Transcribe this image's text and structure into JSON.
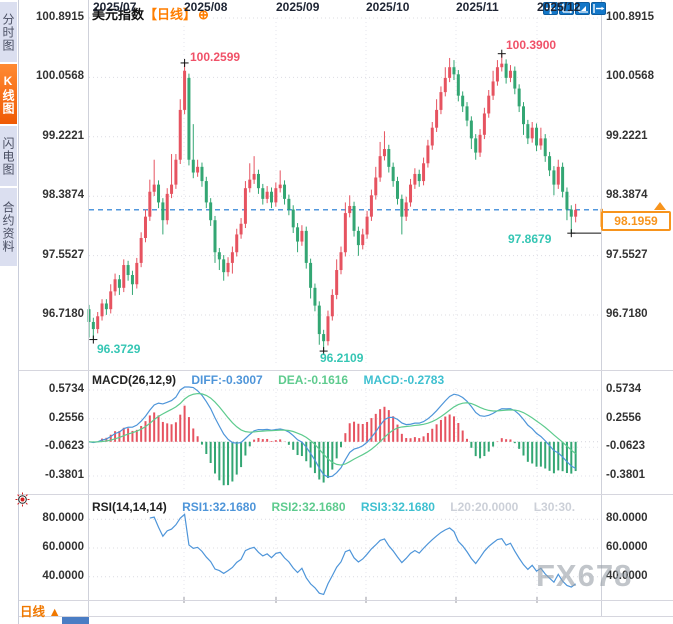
{
  "sidebar": {
    "tabs": [
      {
        "label": "分时图",
        "active": false
      },
      {
        "label": "K线图",
        "active": true
      },
      {
        "label": "闪电图",
        "active": false
      },
      {
        "label": "合约资料",
        "active": false
      }
    ]
  },
  "header": {
    "title": "美元指数",
    "period_tag": "【日线】",
    "add_icon": "⊕"
  },
  "main_chart": {
    "y_axis_labels": [
      "100.8915",
      "100.0568",
      "99.2221",
      "98.3874",
      "97.5527",
      "96.7180"
    ],
    "annotations": {
      "high_jul": "100.2599",
      "high_nov": "100.3900",
      "low_jul": "96.3729",
      "low_sep": "96.2109",
      "low_dec": "97.8679",
      "last_price": "98.1959"
    }
  },
  "macd_panel": {
    "title": "MACD(26,12,9)",
    "diff": "DIFF:-0.3007",
    "dea": "DEA:-0.1616",
    "macd": "MACD:-0.2783",
    "y_axis_labels": [
      "0.5734",
      "0.2556",
      "-0.0623",
      "-0.3801"
    ]
  },
  "rsi_panel": {
    "title": "RSI(14,14,14)",
    "rsi1": "RSI1:32.1680",
    "rsi2": "RSI2:32.1680",
    "rsi3": "RSI3:32.1680",
    "l20": "L20:20.0000",
    "l30": "L30:30.",
    "y_axis_labels": [
      "80.0000",
      "60.0000",
      "40.0000"
    ]
  },
  "x_axis": {
    "labels": [
      "2025/07",
      "2025/08",
      "2025/09",
      "2025/10",
      "2025/11",
      "2025/12"
    ]
  },
  "footer": {
    "period": "日线",
    "arrow": "▲"
  },
  "watermark": "FX678",
  "colors": {
    "up": "#e65360",
    "down": "#33a673",
    "accent": "#f7941d",
    "dashed": "#1876d2",
    "diff": "#4e95d9",
    "dea": "#5ecb8e",
    "macd": "#3fc0d0",
    "rsi": "#4e95d9",
    "high_label": "#f05168",
    "low_label": "#35c6b4"
  },
  "chart_data": [
    {
      "type": "candlestick",
      "title": "美元指数 日线",
      "x_ticks": [
        "2025/07",
        "2025/08",
        "2025/09",
        "2025/10",
        "2025/11",
        "2025/12"
      ],
      "y_ticks": [
        100.8915,
        100.0568,
        99.2221,
        98.3874,
        97.5527,
        96.718
      ],
      "ylim": [
        96.15,
        100.95
      ],
      "last_price": 98.1959,
      "markers": [
        {
          "idx": 1,
          "price": 96.3729
        },
        {
          "idx": 22,
          "price": 100.2599
        },
        {
          "idx": 54,
          "price": 96.2109
        },
        {
          "idx": 95,
          "price": 100.39
        },
        {
          "idx": 111,
          "price": 97.8679
        }
      ],
      "ohlc": [
        [
          96.8,
          96.86,
          96.4,
          96.62
        ],
        [
          96.62,
          96.68,
          96.3729,
          96.52
        ],
        [
          96.52,
          96.76,
          96.46,
          96.7
        ],
        [
          96.7,
          96.94,
          96.64,
          96.88
        ],
        [
          96.88,
          96.94,
          96.72,
          96.8
        ],
        [
          96.8,
          97.15,
          96.74,
          97.05
        ],
        [
          97.05,
          97.3,
          96.99,
          97.22
        ],
        [
          97.22,
          97.28,
          97.0,
          97.1
        ],
        [
          97.1,
          97.5,
          97.04,
          97.42
        ],
        [
          97.42,
          97.48,
          97.2,
          97.28
        ],
        [
          97.28,
          97.34,
          97.0,
          97.15
        ],
        [
          97.15,
          97.52,
          97.09,
          97.45
        ],
        [
          97.45,
          97.88,
          97.39,
          97.8
        ],
        [
          97.8,
          98.2,
          97.74,
          98.1
        ],
        [
          98.1,
          98.62,
          98.04,
          98.45
        ],
        [
          98.45,
          98.9,
          98.39,
          98.55
        ],
        [
          98.55,
          98.61,
          98.22,
          98.3
        ],
        [
          98.3,
          98.36,
          97.85,
          98.05
        ],
        [
          98.05,
          98.5,
          97.99,
          98.42
        ],
        [
          98.42,
          98.98,
          98.36,
          98.55
        ],
        [
          98.55,
          98.98,
          98.49,
          98.9
        ],
        [
          98.9,
          99.75,
          98.84,
          99.6
        ],
        [
          99.6,
          100.2599,
          99.54,
          100.15
        ],
        [
          100.05,
          100.11,
          98.82,
          98.9
        ],
        [
          98.9,
          99.4,
          98.64,
          98.72
        ],
        [
          98.72,
          98.9,
          98.66,
          98.8
        ],
        [
          98.8,
          98.86,
          98.52,
          98.6
        ],
        [
          98.6,
          98.66,
          98.22,
          98.3
        ],
        [
          98.3,
          98.36,
          97.97,
          98.05
        ],
        [
          98.05,
          98.11,
          97.45,
          97.6
        ],
        [
          97.6,
          97.66,
          97.35,
          97.5
        ],
        [
          97.5,
          97.56,
          97.2,
          97.32
        ],
        [
          97.32,
          97.53,
          97.26,
          97.45
        ],
        [
          97.45,
          97.68,
          97.3,
          97.6
        ],
        [
          97.6,
          97.93,
          97.54,
          97.85
        ],
        [
          97.85,
          98.08,
          97.79,
          98.0
        ],
        [
          98.0,
          98.6,
          97.94,
          98.5
        ],
        [
          98.5,
          98.85,
          98.44,
          98.62
        ],
        [
          98.62,
          98.95,
          98.56,
          98.7
        ],
        [
          98.7,
          98.76,
          98.42,
          98.5
        ],
        [
          98.5,
          98.56,
          98.27,
          98.35
        ],
        [
          98.35,
          98.53,
          98.29,
          98.45
        ],
        [
          98.45,
          98.51,
          98.22,
          98.3
        ],
        [
          98.3,
          98.58,
          98.24,
          98.5
        ],
        [
          98.5,
          98.75,
          98.44,
          98.55
        ],
        [
          98.55,
          98.61,
          98.27,
          98.35
        ],
        [
          98.35,
          98.41,
          98.12,
          98.2
        ],
        [
          98.2,
          98.26,
          97.87,
          97.95
        ],
        [
          97.95,
          98.01,
          97.6,
          97.75
        ],
        [
          97.75,
          97.98,
          97.69,
          97.9
        ],
        [
          97.9,
          97.96,
          97.37,
          97.45
        ],
        [
          97.45,
          97.51,
          96.95,
          97.1
        ],
        [
          97.1,
          97.16,
          96.77,
          96.85
        ],
        [
          96.85,
          96.91,
          96.3,
          96.45
        ],
        [
          96.45,
          96.51,
          96.2109,
          96.35
        ],
        [
          96.35,
          96.78,
          96.29,
          96.7
        ],
        [
          96.7,
          97.08,
          96.64,
          97.0
        ],
        [
          97.0,
          97.5,
          96.94,
          97.35
        ],
        [
          97.35,
          97.68,
          97.29,
          97.6
        ],
        [
          97.6,
          98.3,
          97.54,
          98.15
        ],
        [
          98.15,
          98.4,
          98.09,
          98.25
        ],
        [
          98.25,
          98.31,
          97.82,
          97.9
        ],
        [
          97.9,
          97.96,
          97.55,
          97.7
        ],
        [
          97.7,
          97.93,
          97.64,
          97.85
        ],
        [
          97.85,
          98.18,
          97.79,
          98.1
        ],
        [
          98.1,
          98.48,
          98.04,
          98.4
        ],
        [
          98.4,
          98.8,
          98.34,
          98.65
        ],
        [
          98.65,
          99.15,
          98.59,
          98.95
        ],
        [
          98.95,
          99.3,
          98.89,
          99.05
        ],
        [
          99.05,
          99.11,
          98.72,
          98.8
        ],
        [
          98.8,
          98.86,
          98.52,
          98.6
        ],
        [
          98.6,
          98.66,
          98.27,
          98.35
        ],
        [
          98.35,
          98.41,
          97.85,
          98.1
        ],
        [
          98.1,
          98.38,
          98.04,
          98.3
        ],
        [
          98.3,
          98.63,
          98.24,
          98.55
        ],
        [
          98.55,
          98.78,
          98.49,
          98.7
        ],
        [
          98.7,
          98.76,
          98.52,
          98.6
        ],
        [
          98.6,
          98.93,
          98.54,
          98.85
        ],
        [
          98.85,
          99.18,
          98.79,
          99.1
        ],
        [
          99.1,
          99.43,
          99.04,
          99.35
        ],
        [
          99.35,
          99.75,
          99.29,
          99.6
        ],
        [
          99.6,
          99.93,
          99.54,
          99.85
        ],
        [
          99.85,
          100.2,
          99.79,
          100.05
        ],
        [
          100.05,
          100.33,
          99.99,
          100.2
        ],
        [
          100.2,
          100.3,
          100.02,
          100.1
        ],
        [
          100.1,
          100.16,
          99.72,
          99.8
        ],
        [
          99.8,
          99.86,
          99.57,
          99.65
        ],
        [
          99.65,
          99.71,
          99.37,
          99.45
        ],
        [
          99.45,
          99.51,
          99.05,
          99.2
        ],
        [
          99.2,
          99.26,
          98.9,
          99.0
        ],
        [
          99.0,
          99.33,
          98.94,
          99.25
        ],
        [
          99.25,
          99.63,
          99.19,
          99.55
        ],
        [
          99.55,
          99.88,
          99.49,
          99.8
        ],
        [
          99.8,
          100.15,
          99.74,
          100.0
        ],
        [
          100.0,
          100.3,
          99.94,
          100.2
        ],
        [
          100.2,
          100.39,
          100.14,
          100.25
        ],
        [
          100.25,
          100.31,
          99.97,
          100.05
        ],
        [
          100.05,
          100.23,
          99.99,
          100.15
        ],
        [
          100.15,
          100.21,
          99.82,
          99.9
        ],
        [
          99.9,
          99.96,
          99.57,
          99.65
        ],
        [
          99.65,
          99.71,
          99.25,
          99.4
        ],
        [
          99.4,
          99.46,
          99.12,
          99.2
        ],
        [
          99.2,
          99.43,
          99.14,
          99.35
        ],
        [
          99.35,
          99.41,
          99.02,
          99.1
        ],
        [
          99.1,
          99.35,
          99.04,
          99.2
        ],
        [
          99.2,
          99.26,
          98.87,
          98.95
        ],
        [
          98.95,
          99.01,
          98.67,
          98.75
        ],
        [
          98.75,
          98.81,
          98.4,
          98.55
        ],
        [
          98.55,
          98.9,
          98.49,
          98.8
        ],
        [
          98.8,
          98.86,
          98.37,
          98.45
        ],
        [
          98.45,
          98.51,
          98.05,
          98.2
        ],
        [
          98.2,
          98.26,
          97.8679,
          98.1
        ],
        [
          98.1,
          98.28,
          98.02,
          98.1959
        ]
      ]
    },
    {
      "type": "bar",
      "name": "MACD",
      "params": [
        26,
        12,
        9
      ],
      "computed_from_close": true,
      "shown_values": {
        "DIFF": -0.3007,
        "DEA": -0.1616,
        "MACD": -0.2783
      },
      "y_ticks": [
        0.5734,
        0.2556,
        -0.0623,
        -0.3801
      ]
    },
    {
      "type": "line",
      "name": "RSI",
      "params": [
        14,
        14,
        14
      ],
      "computed_from_close": true,
      "shown_values": {
        "RSI1": 32.168,
        "RSI2": 32.168,
        "RSI3": 32.168,
        "L20": 20.0,
        "L30": 30.0
      },
      "y_ticks": [
        80.0,
        60.0,
        40.0
      ]
    }
  ]
}
